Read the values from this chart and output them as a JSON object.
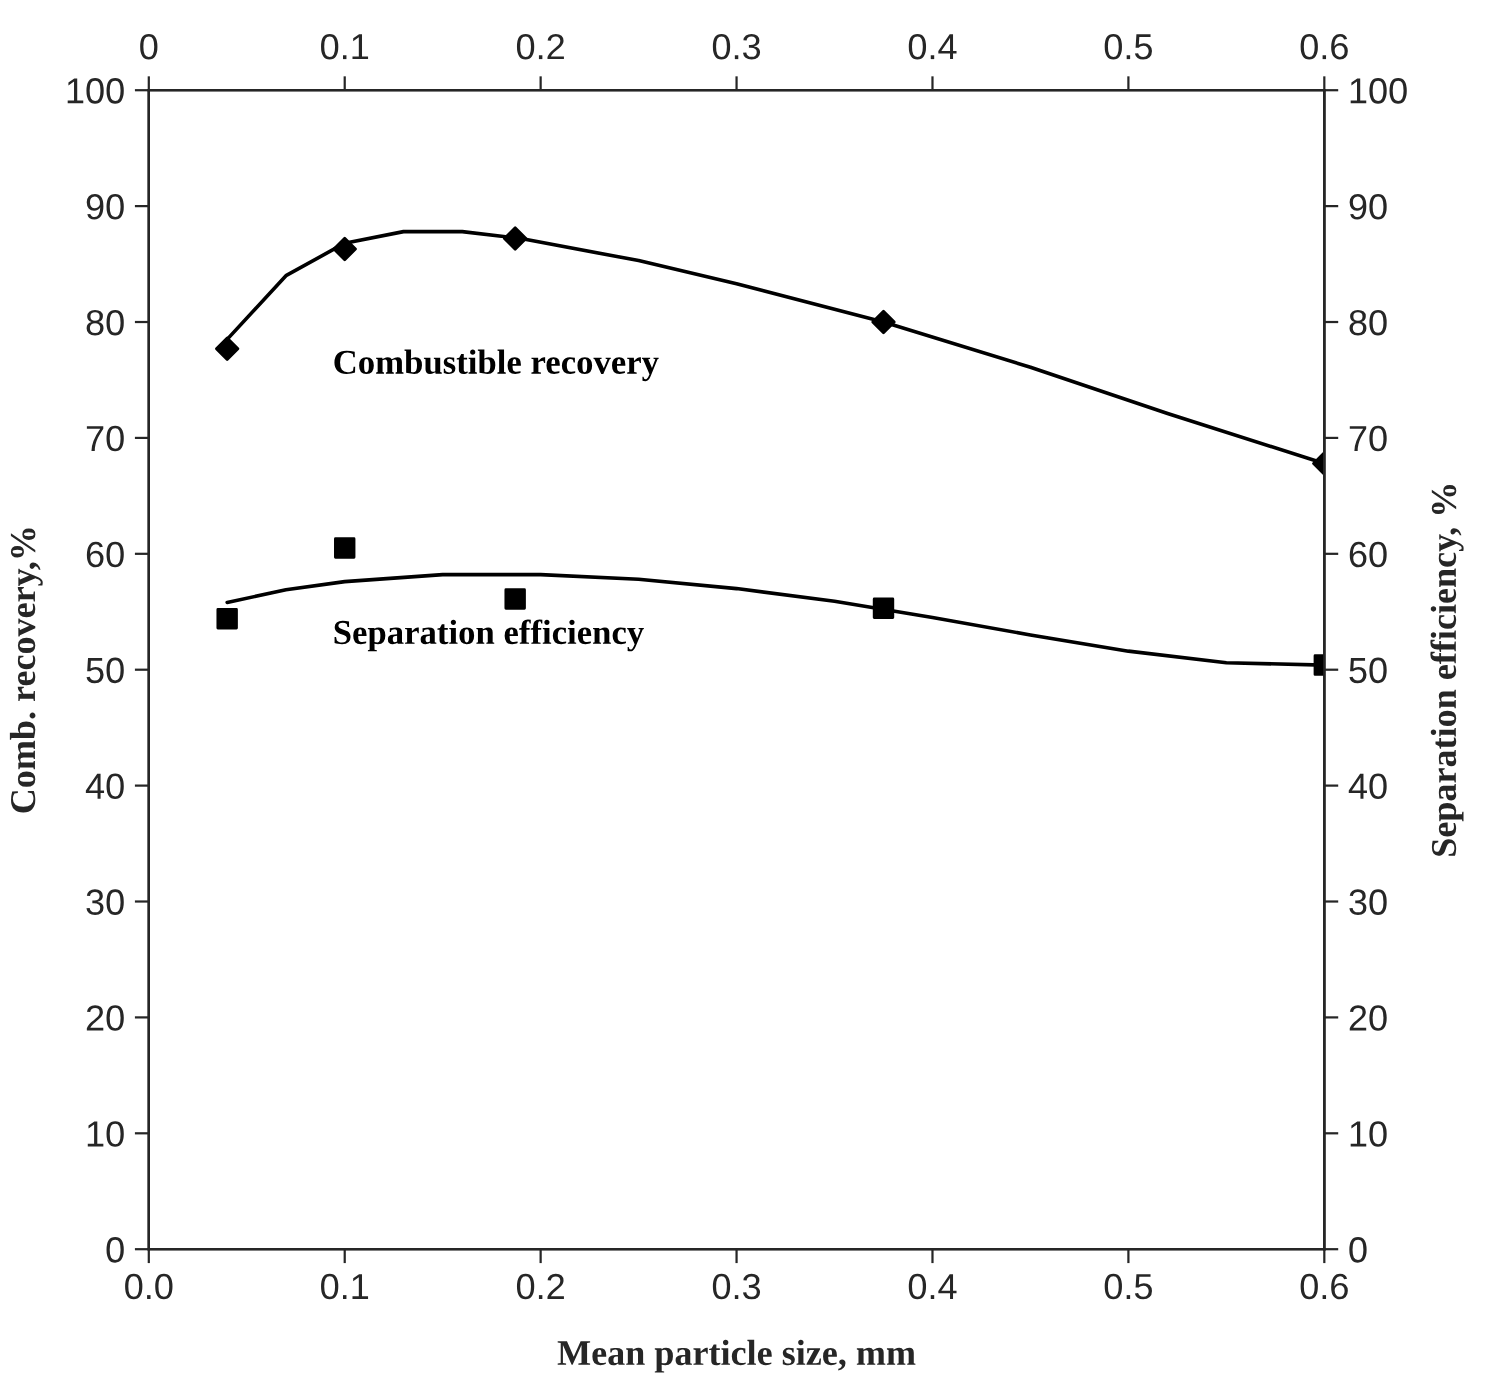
{
  "chart_data": {
    "type": "scatter",
    "xlabel": "Mean particle size, mm",
    "ylabel": "Comb. recovery,%",
    "y2label": "Separation efficiency, %",
    "series": [
      {
        "name": "Combustible recovery",
        "color": "#000000",
        "marker": "diamond",
        "x": [
          0.04,
          0.1,
          0.187,
          0.375,
          0.6
        ],
        "values": [
          77.7,
          86.3,
          87.2,
          80.0,
          67.8
        ]
      },
      {
        "type": "line",
        "color": "#000000",
        "marker": "none",
        "x": [
          0.04,
          0.07,
          0.1,
          0.13,
          0.16,
          0.19,
          0.25,
          0.3,
          0.375,
          0.45,
          0.52,
          0.6
        ],
        "values": [
          78.5,
          84.0,
          86.8,
          87.8,
          87.8,
          87.2,
          85.3,
          83.3,
          80.0,
          76.1,
          72.1,
          67.8
        ]
      },
      {
        "name": "Separation efficiency",
        "axis": "y2",
        "color": "#000000",
        "marker": "square",
        "x": [
          0.04,
          0.1,
          0.187,
          0.375,
          0.6
        ],
        "values": [
          54.4,
          60.5,
          56.1,
          55.3,
          50.4
        ]
      },
      {
        "type": "line",
        "axis": "y2",
        "color": "#000000",
        "marker": "none",
        "x": [
          0.04,
          0.07,
          0.1,
          0.15,
          0.2,
          0.25,
          0.3,
          0.35,
          0.4,
          0.45,
          0.5,
          0.55,
          0.6
        ],
        "values": [
          55.8,
          56.9,
          57.6,
          58.2,
          58.2,
          57.8,
          57.0,
          55.9,
          54.5,
          53.0,
          51.6,
          50.6,
          50.4
        ]
      }
    ],
    "xlim": [
      0,
      0.6
    ],
    "xticks": [
      {
        "value": 0,
        "label": "0.0"
      },
      0.1,
      0.2,
      0.3,
      0.4,
      0.5,
      0.6
    ],
    "x2lim": [
      0,
      0.6
    ],
    "x2ticks": [
      0,
      0.1,
      0.2,
      0.3,
      0.4,
      0.5,
      0.6
    ],
    "ylim": [
      0,
      100
    ],
    "yticks": [
      0,
      10,
      20,
      30,
      40,
      50,
      60,
      70,
      80,
      90,
      100
    ],
    "y2lim": [
      0,
      100
    ],
    "y2ticks": [
      0,
      10,
      20,
      30,
      40,
      50,
      60,
      70,
      80,
      90,
      100
    ],
    "grid": false,
    "legend": false
  }
}
